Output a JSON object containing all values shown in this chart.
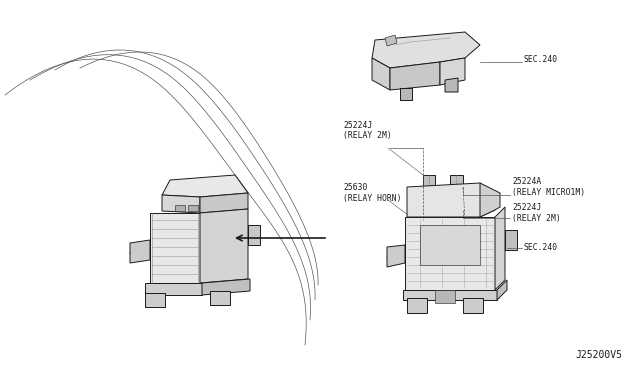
{
  "bg_color": "#ffffff",
  "line_color": "#1a1a1a",
  "text_color": "#1a1a1a",
  "diagram_id": "J25200V5",
  "figsize": [
    6.4,
    3.72
  ],
  "dpi": 100,
  "labels": {
    "sec240_top": "SEC.240",
    "relay2m_top": "25224J\n(RELAY 2M)",
    "relay_micro": "25224A\n(RELAY MICRO1M)",
    "relay2m_bot": "25224J\n(RELAY 2M)",
    "sec240_mid": "SEC.240",
    "relay_horn": "25630\n(RELAY HORN)"
  }
}
